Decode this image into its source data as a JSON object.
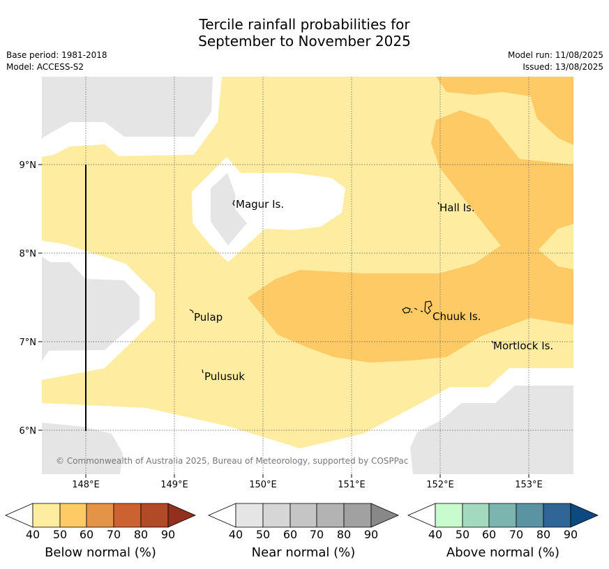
{
  "title_line1": "Tercile rainfall probabilities for",
  "title_line2": "September to November 2025",
  "meta": {
    "base_period": "Base period: 1981-2018",
    "model": "Model: ACCESS-S2",
    "model_run": "Model run: 11/08/2025",
    "issued": "Issued: 13/08/2025"
  },
  "map": {
    "lon_labels": [
      "148°E",
      "149°E",
      "150°E",
      "151°E",
      "152°E",
      "153°E"
    ],
    "lat_labels": [
      "9°N",
      "8°N",
      "7°N",
      "6°N"
    ],
    "places": {
      "magur": "Magur Is.",
      "hall": "Hall Is.",
      "pulap": "Pulap",
      "chuuk": "Chuuk Is.",
      "mortlock": "Mortlock Is.",
      "pulusuk": "Pulusuk"
    },
    "copyright": "© Commonwealth of Australia 2025, Bureau of Meteorology, supported by COSPPac",
    "colors": {
      "below_40_50": "#feeca0",
      "below_50_60": "#feca66",
      "near_normal": "#e5e5e5",
      "background": "#ffffff"
    }
  },
  "colorbars": [
    {
      "label": "Below normal (%)",
      "ticks": [
        "40",
        "50",
        "60",
        "70",
        "80",
        "90"
      ],
      "colors": [
        "#feeca0",
        "#feca66",
        "#e39447",
        "#cc6231",
        "#b14a27",
        "#932f1e"
      ]
    },
    {
      "label": "Near normal (%)",
      "ticks": [
        "40",
        "50",
        "60",
        "70",
        "80",
        "90"
      ],
      "colors": [
        "#e5e5e5",
        "#d6d6d6",
        "#c5c5c5",
        "#b3b3b3",
        "#a1a1a1",
        "#888888"
      ]
    },
    {
      "label": "Above normal (%)",
      "ticks": [
        "40",
        "50",
        "60",
        "70",
        "80",
        "90"
      ],
      "colors": [
        "#c8fcce",
        "#a2d9bf",
        "#7cb5b0",
        "#5a93a2",
        "#306598",
        "#0b4980"
      ]
    }
  ]
}
